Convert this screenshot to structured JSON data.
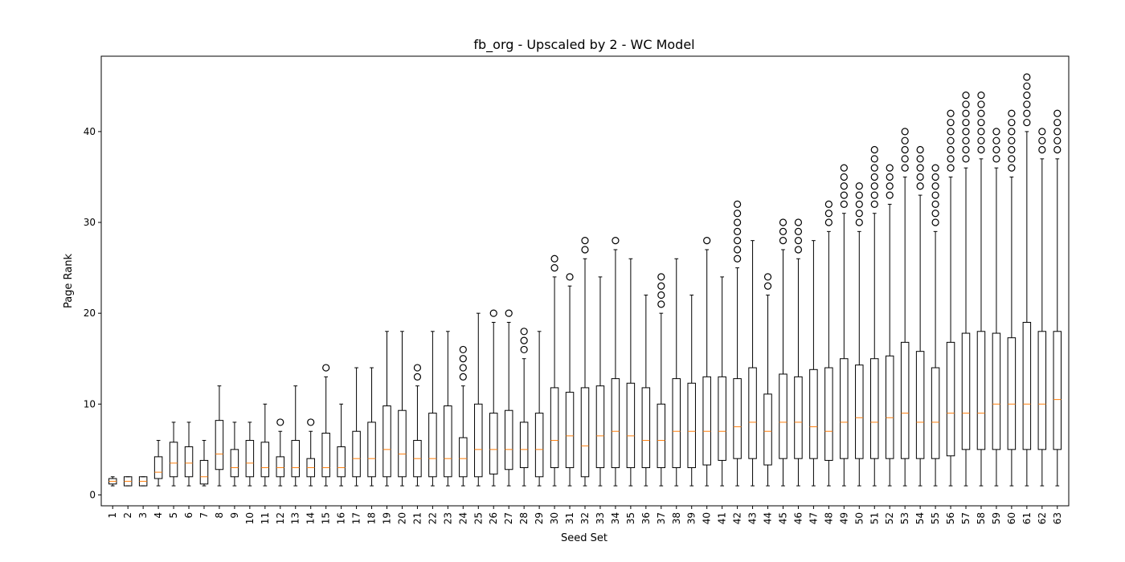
{
  "chart_data": {
    "type": "box",
    "title": "fb_org - Upscaled by 2 - WC Model",
    "xlabel": "Seed Set",
    "ylabel": "Page Rank",
    "ylim": [
      -1.2,
      48.3
    ],
    "yticks": [
      0,
      10,
      20,
      30,
      40
    ],
    "grid": false,
    "colors": {
      "box": "#000000",
      "median": "#ff7f0e",
      "flier": "#000000"
    },
    "categories": [
      "1",
      "2",
      "3",
      "4",
      "5",
      "6",
      "7",
      "8",
      "9",
      "10",
      "11",
      "12",
      "13",
      "14",
      "15",
      "16",
      "17",
      "18",
      "19",
      "20",
      "21",
      "22",
      "23",
      "24",
      "25",
      "26",
      "27",
      "28",
      "29",
      "30",
      "31",
      "32",
      "33",
      "34",
      "35",
      "36",
      "37",
      "38",
      "39",
      "40",
      "41",
      "42",
      "43",
      "44",
      "45",
      "46",
      "47",
      "48",
      "49",
      "50",
      "51",
      "52",
      "53",
      "54",
      "55",
      "56",
      "57",
      "58",
      "59",
      "60",
      "61",
      "62",
      "63"
    ],
    "boxes": [
      {
        "whislo": 1,
        "q1": 1.2,
        "med": 1.5,
        "q3": 1.8,
        "whishi": 2,
        "fliers": []
      },
      {
        "whislo": 1,
        "q1": 1,
        "med": 1.5,
        "q3": 2,
        "whishi": 2,
        "fliers": []
      },
      {
        "whislo": 1,
        "q1": 1,
        "med": 1.5,
        "q3": 2,
        "whishi": 2,
        "fliers": []
      },
      {
        "whislo": 1,
        "q1": 1.8,
        "med": 2.5,
        "q3": 4.2,
        "whishi": 6,
        "fliers": []
      },
      {
        "whislo": 1,
        "q1": 2,
        "med": 3.5,
        "q3": 5.8,
        "whishi": 8,
        "fliers": []
      },
      {
        "whislo": 1,
        "q1": 2,
        "med": 3.5,
        "q3": 5.3,
        "whishi": 8,
        "fliers": []
      },
      {
        "whislo": 1,
        "q1": 1.2,
        "med": 2,
        "q3": 3.8,
        "whishi": 6,
        "fliers": []
      },
      {
        "whislo": 1,
        "q1": 2.8,
        "med": 4.5,
        "q3": 8.2,
        "whishi": 12,
        "fliers": []
      },
      {
        "whislo": 1,
        "q1": 2,
        "med": 3,
        "q3": 5,
        "whishi": 8,
        "fliers": []
      },
      {
        "whislo": 1,
        "q1": 2,
        "med": 3.5,
        "q3": 6,
        "whishi": 8,
        "fliers": []
      },
      {
        "whislo": 1,
        "q1": 2,
        "med": 3,
        "q3": 5.8,
        "whishi": 10,
        "fliers": []
      },
      {
        "whislo": 1,
        "q1": 2,
        "med": 3,
        "q3": 4.2,
        "whishi": 7,
        "fliers": [
          8
        ]
      },
      {
        "whislo": 1,
        "q1": 2,
        "med": 3,
        "q3": 6,
        "whishi": 12,
        "fliers": []
      },
      {
        "whislo": 1,
        "q1": 2,
        "med": 3,
        "q3": 4,
        "whishi": 7,
        "fliers": [
          8
        ]
      },
      {
        "whislo": 1,
        "q1": 2,
        "med": 3,
        "q3": 6.8,
        "whishi": 13,
        "fliers": [
          14
        ]
      },
      {
        "whislo": 1,
        "q1": 2,
        "med": 3,
        "q3": 5.3,
        "whishi": 10,
        "fliers": []
      },
      {
        "whislo": 1,
        "q1": 2,
        "med": 4,
        "q3": 7,
        "whishi": 14,
        "fliers": []
      },
      {
        "whislo": 1,
        "q1": 2,
        "med": 4,
        "q3": 8,
        "whishi": 14,
        "fliers": []
      },
      {
        "whislo": 1,
        "q1": 2,
        "med": 5,
        "q3": 9.8,
        "whishi": 18,
        "fliers": []
      },
      {
        "whislo": 1,
        "q1": 2,
        "med": 4.5,
        "q3": 9.3,
        "whishi": 18,
        "fliers": []
      },
      {
        "whislo": 1,
        "q1": 2,
        "med": 4,
        "q3": 6,
        "whishi": 12,
        "fliers": [
          13,
          14
        ]
      },
      {
        "whislo": 1,
        "q1": 2,
        "med": 4,
        "q3": 9,
        "whishi": 18,
        "fliers": []
      },
      {
        "whislo": 1,
        "q1": 2,
        "med": 4,
        "q3": 9.8,
        "whishi": 18,
        "fliers": []
      },
      {
        "whislo": 1,
        "q1": 2,
        "med": 4,
        "q3": 6.3,
        "whishi": 12,
        "fliers": [
          13,
          14,
          15,
          16
        ]
      },
      {
        "whislo": 1,
        "q1": 2,
        "med": 5,
        "q3": 10,
        "whishi": 20,
        "fliers": []
      },
      {
        "whislo": 1,
        "q1": 2.3,
        "med": 5,
        "q3": 9,
        "whishi": 19,
        "fliers": [
          20
        ]
      },
      {
        "whislo": 1,
        "q1": 2.8,
        "med": 5,
        "q3": 9.3,
        "whishi": 19,
        "fliers": [
          20
        ]
      },
      {
        "whislo": 1,
        "q1": 3,
        "med": 5,
        "q3": 8,
        "whishi": 15,
        "fliers": [
          16,
          17,
          18
        ]
      },
      {
        "whislo": 1,
        "q1": 2,
        "med": 5,
        "q3": 9,
        "whishi": 18,
        "fliers": []
      },
      {
        "whislo": 1,
        "q1": 3,
        "med": 6,
        "q3": 11.8,
        "whishi": 24,
        "fliers": [
          25,
          26
        ]
      },
      {
        "whislo": 1,
        "q1": 3,
        "med": 6.5,
        "q3": 11.3,
        "whishi": 23,
        "fliers": [
          24
        ]
      },
      {
        "whislo": 1,
        "q1": 2,
        "med": 5.4,
        "q3": 11.8,
        "whishi": 26,
        "fliers": [
          27,
          28
        ]
      },
      {
        "whislo": 1,
        "q1": 3,
        "med": 6.5,
        "q3": 12,
        "whishi": 24,
        "fliers": []
      },
      {
        "whislo": 1,
        "q1": 3,
        "med": 7,
        "q3": 12.8,
        "whishi": 27,
        "fliers": [
          28
        ]
      },
      {
        "whislo": 1,
        "q1": 3,
        "med": 6.5,
        "q3": 12.3,
        "whishi": 26,
        "fliers": []
      },
      {
        "whislo": 1,
        "q1": 3,
        "med": 6,
        "q3": 11.8,
        "whishi": 22,
        "fliers": []
      },
      {
        "whislo": 1,
        "q1": 3,
        "med": 6,
        "q3": 10,
        "whishi": 20,
        "fliers": [
          21,
          22,
          23,
          24
        ]
      },
      {
        "whislo": 1,
        "q1": 3,
        "med": 7,
        "q3": 12.8,
        "whishi": 26,
        "fliers": []
      },
      {
        "whislo": 1,
        "q1": 3,
        "med": 7,
        "q3": 12.3,
        "whishi": 22,
        "fliers": []
      },
      {
        "whislo": 1,
        "q1": 3.3,
        "med": 7,
        "q3": 13,
        "whishi": 27,
        "fliers": [
          28
        ]
      },
      {
        "whislo": 1,
        "q1": 3.8,
        "med": 7,
        "q3": 13,
        "whishi": 24,
        "fliers": []
      },
      {
        "whislo": 1,
        "q1": 4,
        "med": 7.5,
        "q3": 12.8,
        "whishi": 25,
        "fliers": [
          26,
          27,
          28,
          29,
          30,
          31,
          32
        ]
      },
      {
        "whislo": 1,
        "q1": 4,
        "med": 8,
        "q3": 14,
        "whishi": 28,
        "fliers": []
      },
      {
        "whislo": 1,
        "q1": 3.3,
        "med": 7,
        "q3": 11.1,
        "whishi": 22,
        "fliers": [
          23,
          24
        ]
      },
      {
        "whislo": 1,
        "q1": 4,
        "med": 8,
        "q3": 13.3,
        "whishi": 27,
        "fliers": [
          28,
          29,
          30
        ]
      },
      {
        "whislo": 1,
        "q1": 4,
        "med": 8,
        "q3": 13,
        "whishi": 26,
        "fliers": [
          27,
          28,
          29,
          30
        ]
      },
      {
        "whislo": 1,
        "q1": 4,
        "med": 7.5,
        "q3": 13.8,
        "whishi": 28,
        "fliers": []
      },
      {
        "whislo": 1,
        "q1": 3.8,
        "med": 7,
        "q3": 14,
        "whishi": 29,
        "fliers": [
          30,
          31,
          32
        ]
      },
      {
        "whislo": 1,
        "q1": 4,
        "med": 8,
        "q3": 15,
        "whishi": 31,
        "fliers": [
          32,
          33,
          34,
          35,
          36
        ]
      },
      {
        "whislo": 1,
        "q1": 4,
        "med": 8.5,
        "q3": 14.3,
        "whishi": 29,
        "fliers": [
          30,
          31,
          32,
          33,
          34
        ]
      },
      {
        "whislo": 1,
        "q1": 4,
        "med": 8,
        "q3": 15,
        "whishi": 31,
        "fliers": [
          32,
          33,
          34,
          35,
          36,
          37,
          38
        ]
      },
      {
        "whislo": 1,
        "q1": 4,
        "med": 8.5,
        "q3": 15.3,
        "whishi": 32,
        "fliers": [
          33,
          34,
          35,
          36
        ]
      },
      {
        "whislo": 1,
        "q1": 4,
        "med": 9,
        "q3": 16.8,
        "whishi": 35,
        "fliers": [
          36,
          37,
          38,
          39,
          40
        ]
      },
      {
        "whislo": 1,
        "q1": 4,
        "med": 8,
        "q3": 15.8,
        "whishi": 33,
        "fliers": [
          34,
          35,
          36,
          37,
          38
        ]
      },
      {
        "whislo": 1,
        "q1": 4,
        "med": 8,
        "q3": 14,
        "whishi": 29,
        "fliers": [
          30,
          31,
          32,
          33,
          34,
          35,
          36
        ]
      },
      {
        "whislo": 1,
        "q1": 4.3,
        "med": 9,
        "q3": 16.8,
        "whishi": 35,
        "fliers": [
          36,
          37,
          38,
          39,
          40,
          41,
          42
        ]
      },
      {
        "whislo": 1,
        "q1": 5,
        "med": 9,
        "q3": 17.8,
        "whishi": 36,
        "fliers": [
          37,
          38,
          39,
          40,
          41,
          42,
          43,
          44
        ]
      },
      {
        "whislo": 1,
        "q1": 5,
        "med": 9,
        "q3": 18,
        "whishi": 37,
        "fliers": [
          38,
          39,
          40,
          41,
          42,
          43,
          44
        ]
      },
      {
        "whislo": 1,
        "q1": 5,
        "med": 10,
        "q3": 17.8,
        "whishi": 36,
        "fliers": [
          37,
          38,
          39,
          40
        ]
      },
      {
        "whislo": 1,
        "q1": 5,
        "med": 10,
        "q3": 17.3,
        "whishi": 35,
        "fliers": [
          36,
          37,
          38,
          39,
          40,
          41,
          42
        ]
      },
      {
        "whislo": 1,
        "q1": 5,
        "med": 10,
        "q3": 19,
        "whishi": 40,
        "fliers": [
          41,
          42,
          43,
          44,
          45,
          46
        ]
      },
      {
        "whislo": 1,
        "q1": 5,
        "med": 10,
        "q3": 18,
        "whishi": 37,
        "fliers": [
          38,
          39,
          40
        ]
      },
      {
        "whislo": 1,
        "q1": 5,
        "med": 10.5,
        "q3": 18,
        "whishi": 37,
        "fliers": [
          38,
          39,
          40,
          41,
          42
        ]
      }
    ]
  }
}
